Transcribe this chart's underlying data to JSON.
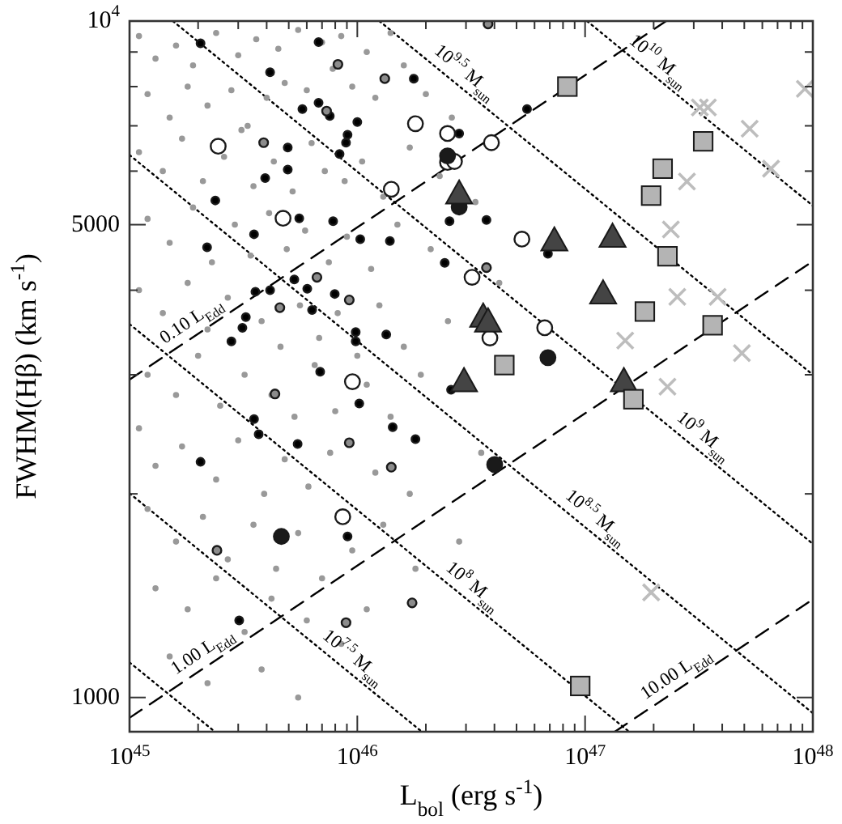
{
  "chart_data": {
    "type": "scatter",
    "xlabel": "L$_{bol}$ (erg s$^{-1}$)",
    "ylabel": "FWHM(Hβ) (km s$^{-1}$)",
    "log": "xy",
    "xlim": [
      1e+45,
      1e+48
    ],
    "ylim": [
      890,
      10000
    ],
    "xticks": [
      {
        "value": 1e+45,
        "label": "10$^{45}$"
      },
      {
        "value": 2e+45,
        "label": null
      },
      {
        "value": 3e+45,
        "label": null
      },
      {
        "value": 4e+45,
        "label": null
      },
      {
        "value": 5e+45,
        "label": null
      },
      {
        "value": 6e+45,
        "label": null
      },
      {
        "value": 7e+45,
        "label": null
      },
      {
        "value": 8e+45,
        "label": null
      },
      {
        "value": 9e+45,
        "label": null
      },
      {
        "value": 1e+46,
        "label": "10$^{46}$"
      },
      {
        "value": 2e+46,
        "label": null
      },
      {
        "value": 3e+46,
        "label": null
      },
      {
        "value": 4e+46,
        "label": null
      },
      {
        "value": 5e+46,
        "label": null
      },
      {
        "value": 6e+46,
        "label": null
      },
      {
        "value": 7e+46,
        "label": null
      },
      {
        "value": 8e+46,
        "label": null
      },
      {
        "value": 9e+46,
        "label": null
      },
      {
        "value": 1e+47,
        "label": "10$^{47}$"
      },
      {
        "value": 2e+47,
        "label": null
      },
      {
        "value": 3e+47,
        "label": null
      },
      {
        "value": 4e+47,
        "label": null
      },
      {
        "value": 5e+47,
        "label": null
      },
      {
        "value": 6e+47,
        "label": null
      },
      {
        "value": 7e+47,
        "label": null
      },
      {
        "value": 8e+47,
        "label": null
      },
      {
        "value": 9e+47,
        "label": null
      },
      {
        "value": 1e+48,
        "label": "10$^{48}$"
      }
    ],
    "yticks": [
      1000,
      {
        "value": 2000,
        "label": null
      },
      {
        "value": 3000,
        "label": null
      },
      {
        "value": 4000,
        "label": null
      },
      5000,
      {
        "value": 6000,
        "label": null
      },
      {
        "value": 7000,
        "label": null
      },
      {
        "value": 8000,
        "label": null
      },
      {
        "value": 9000,
        "label": null
      },
      {
        "value": 10000,
        "label": "10$^{4}$"
      }
    ],
    "annotations": [
      {
        "text": "10$^{9.5}$ M$_{sun}$",
        "x": 2.71e+46,
        "y": 8090
      },
      {
        "text": "10$^{10}$ M$_{sun}$",
        "x": 1.92e+47,
        "y": 8400
      },
      {
        "text": "0.10 L$_{Edd}$",
        "x": 2.02e+45,
        "y": 3459
      },
      {
        "text": "1.00 L$_{Edd}$",
        "x": 2.26e+45,
        "y": 1122
      },
      {
        "text": "10.00 L$_{Edd}$",
        "x": 2.71e+47,
        "y": 1040
      },
      {
        "text": "10$^{9}$ M$_{sun}$",
        "x": 3.03e+47,
        "y": 2344
      },
      {
        "text": "10$^{8.5}$ M$_{sun}$",
        "x": 1.02e+47,
        "y": 1778
      },
      {
        "text": "10$^{8}$ M$_{sun}$",
        "x": 2.94e+46,
        "y": 1406
      },
      {
        "text": "10$^{7.5}$ M$_{sun}$",
        "x": 8.77e+45,
        "y": 1104
      }
    ],
    "series": [
      {
        "type": "line",
        "color": "#000000",
        "line_style": "dotted",
        "x": [
          1e+45,
          2.37e+45
        ],
        "values": [
          1127,
          890
        ]
      },
      {
        "type": "line",
        "color": "#000000",
        "line_style": "dotted",
        "x": [
          1e+45,
          1.92e+46
        ],
        "values": [
          2004,
          890
        ]
      },
      {
        "type": "line",
        "color": "#000000",
        "line_style": "dotted",
        "x": [
          1e+45,
          1.56e+47
        ],
        "values": [
          3565,
          890
        ]
      },
      {
        "type": "line",
        "color": "#000000",
        "line_style": "dotted",
        "x": [
          1e+45,
          1e+48
        ],
        "values": [
          6339,
          948
        ]
      },
      {
        "type": "line",
        "color": "#000000",
        "line_style": "dotted",
        "x": [
          1.55e+45,
          1e+48
        ],
        "values": [
          10000,
          1687
        ]
      },
      {
        "type": "line",
        "color": "#000000",
        "line_style": "dotted",
        "x": [
          1.25e+46,
          1e+48
        ],
        "values": [
          10000,
          3000
        ]
      },
      {
        "type": "line",
        "color": "#000000",
        "line_style": "dotted",
        "x": [
          1.02e+47,
          1e+48
        ],
        "values": [
          10000,
          5333
        ]
      },
      {
        "type": "line",
        "color": "#000000",
        "line_style": "dashed",
        "x": [
          1e+45,
          2.27e+47
        ],
        "values": [
          2951,
          10000
        ]
      },
      {
        "type": "line",
        "color": "#000000",
        "line_style": "dashed",
        "x": [
          1e+45,
          1e+48
        ],
        "values": [
          933,
          4416
        ]
      },
      {
        "type": "line",
        "color": "#000000",
        "line_style": "dashed",
        "x": [
          1.35e+47,
          1e+48
        ],
        "values": [
          890,
          1397
        ]
      },
      {
        "type": "scatter",
        "color": "#999999",
        "marker": "circle",
        "x": [
          1.1e+45,
          1.3e+45,
          1.6e+45,
          1.9e+45,
          2.4e+45,
          3e+45,
          3.6e+45,
          4.5e+45,
          5.5e+45,
          7e+45,
          8.5e+45,
          1.1e+46,
          1.4e+46,
          1.2e+45,
          1.5e+45,
          1.8e+45,
          2.2e+45,
          2.8e+45,
          3.3e+45,
          4e+45,
          4.8e+45,
          6e+45,
          7.8e+45,
          9.5e+45,
          1.2e+46,
          1.6e+46,
          2e+46,
          1.1e+45,
          1.4e+45,
          1.7e+45,
          2.1e+45,
          2.6e+45,
          3.1e+45,
          3.5e+45,
          4.3e+45,
          5.2e+45,
          6.3e+45,
          7.2e+45,
          8.8e+45,
          1.05e+46,
          1.3e+46,
          1.7e+46,
          2.3e+46,
          1.2e+45,
          1.5e+45,
          1.9e+45,
          2.3e+45,
          2.9e+45,
          3.4e+45,
          4.1e+45,
          4.9e+45,
          5.9e+45,
          7.5e+45,
          9e+45,
          1.15e+46,
          1.5e+46,
          2.1e+46,
          3.3e+46,
          1.1e+45,
          1.4e+45,
          1.8e+45,
          2.2e+45,
          2.7e+45,
          3.8e+45,
          4.6e+45,
          5.6e+45,
          6.8e+45,
          8.2e+45,
          1e+46,
          1.25e+46,
          1.6e+46,
          2.5e+46,
          1.2e+45,
          1.6e+45,
          2e+45,
          2.5e+45,
          3.2e+45,
          4.2e+45,
          5.3e+45,
          6.5e+45,
          8e+45,
          1.1e+46,
          1.4e+46,
          1.9e+46,
          1.1e+45,
          1.3e+45,
          1.7e+45,
          2.4e+45,
          3e+45,
          3.9e+45,
          4.8e+45,
          6.1e+45,
          7.6e+45,
          1.2e+46,
          1.7e+46,
          1.2e+45,
          1.6e+45,
          2.1e+45,
          2.7e+45,
          3.5e+45,
          4.4e+45,
          5.5e+45,
          7e+45,
          9.5e+45,
          1.3e+46,
          1.8e+46,
          1.3e+45,
          1.8e+45,
          2.4e+45,
          3.2e+45,
          4.2e+45,
          6e+45,
          8.5e+45,
          1.1e+46,
          1.5e+45,
          2.2e+45,
          3.8e+45,
          5.5e+45,
          2.8e+46,
          3.5e+46,
          4.2e+46,
          2.6e+46
        ],
        "values": [
          9500,
          8800,
          9200,
          8600,
          9600,
          8900,
          9400,
          9100,
          9700,
          9300,
          9500,
          9000,
          9600,
          7800,
          7200,
          8000,
          7500,
          7900,
          7000,
          7700,
          8100,
          7900,
          8500,
          8000,
          7700,
          8600,
          7800,
          6400,
          6000,
          6700,
          5800,
          6300,
          6900,
          5700,
          6200,
          5600,
          6600,
          6000,
          5800,
          6200,
          5500,
          6500,
          5900,
          5100,
          4700,
          5300,
          4400,
          5000,
          4500,
          5200,
          4600,
          4900,
          4400,
          4800,
          4300,
          5000,
          4600,
          5400,
          4000,
          3700,
          4100,
          3500,
          3900,
          3600,
          3300,
          3800,
          3400,
          3700,
          3200,
          3800,
          3300,
          3600,
          3000,
          2800,
          3200,
          2700,
          3000,
          2800,
          2600,
          3100,
          2650,
          2900,
          2600,
          3000,
          2500,
          2200,
          2350,
          2100,
          2400,
          2000,
          2250,
          2050,
          2300,
          2150,
          2000,
          1900,
          1700,
          1850,
          1600,
          1800,
          1550,
          1750,
          1500,
          1650,
          1800,
          1550,
          1450,
          1350,
          1500,
          1250,
          1400,
          1300,
          1200,
          1350,
          1150,
          1050,
          1100,
          1000,
          1700,
          2300,
          4100,
          7200
        ]
      },
      {
        "type": "scatter",
        "color": "#000000",
        "marker": "circle",
        "x": [
          2.05e+45,
          6.76e+45,
          4.14e+45,
          1.77e+46,
          5.74e+45,
          6.76e+45,
          7.57e+45,
          1e+46,
          9.06e+45,
          8.92e+45,
          8.36e+45,
          4.95e+45,
          3.94e+45,
          4.95e+45,
          2.38e+45,
          5.56e+45,
          7.83e+45,
          3.52e+45,
          1.03e+46,
          1.39e+46,
          2.19e+45,
          2.54e+46,
          2.42e+46,
          2.8e+46,
          5.29e+45,
          6.03e+45,
          7.96e+45,
          3.57e+45,
          4.14e+45,
          3.24e+45,
          3.13e+45,
          2.8e+45,
          6.33e+45,
          9.84e+45,
          9.84e+45,
          1.34e+46,
          6.87e+45,
          5.56e+46,
          3.69e+46,
          6.87e+46,
          2.58e+46,
          1.02e+46,
          3.52e+45,
          3.69e+45,
          5.47e+45,
          1.43e+46,
          1.8e+46,
          2.05e+45,
          9.06e+45,
          3.03e+45
        ],
        "values": [
          9270,
          9310,
          8400,
          8220,
          7410,
          7570,
          7240,
          7090,
          6790,
          6610,
          6360,
          6500,
          5860,
          6030,
          5430,
          5110,
          5060,
          4840,
          4760,
          4730,
          4630,
          5060,
          4390,
          6820,
          4150,
          4020,
          3950,
          3980,
          4000,
          3650,
          3520,
          3360,
          3740,
          3470,
          3360,
          3440,
          3030,
          7410,
          5080,
          4530,
          2850,
          2720,
          2580,
          2450,
          2370,
          2510,
          2410,
          2230,
          1730,
          1300
        ]
      },
      {
        "type": "scatter",
        "color": "#8c8c8c",
        "marker": "circle",
        "x": [
          8.22e+45,
          1.32e+46,
          7.33e+45,
          3.88e+45,
          6.65e+45,
          9.22e+45,
          4.57e+45,
          3.75e+46,
          3.69e+46,
          4.35e+45,
          9.22e+45,
          1.41e+46,
          2.42e+45,
          1.74e+46,
          8.92e+45
        ],
        "values": [
          8630,
          8220,
          7360,
          6610,
          4180,
          3870,
          3770,
          9900,
          4320,
          2810,
          2380,
          2190,
          1650,
          1380,
          1290
        ]
      },
      {
        "type": "scatter",
        "color": "#ffffff",
        "marker": "circle",
        "x": [
          2.45e+45,
          1.8e+46,
          2.49e+46,
          2.49e+46,
          2.67e+46,
          1.41e+46,
          4.72e+45,
          3.19e+46,
          3.88e+46,
          5.28e+46,
          3.82e+46,
          6.65e+46,
          9.52e+45,
          8.63e+45
        ],
        "values": [
          6530,
          7050,
          6820,
          6180,
          6200,
          5640,
          5110,
          4180,
          6610,
          4760,
          3400,
          3520,
          2930,
          1850
        ]
      },
      {
        "type": "scatter",
        "color": "#1a1a1a",
        "marker": "circle",
        "x": [
          2.49e+46,
          2.8e+46,
          6.87e+46,
          4.01e+46,
          4.64e+45
        ],
        "values": [
          6320,
          5310,
          3180,
          2210,
          1730
        ]
      },
      {
        "type": "scatter",
        "color": "#444444",
        "marker": "triangle",
        "x": [
          2.8e+46,
          7.33e+46,
          1.32e+47,
          1.2e+47,
          3.57e+46,
          3.75e+46,
          2.94e+46,
          1.48e+47
        ],
        "values": [
          5550,
          4730,
          4790,
          3950,
          3650,
          3590,
          2930,
          2930
        ]
      },
      {
        "type": "scatter",
        "color": "#b4b4b4",
        "marker": "square",
        "x": [
          8.36e+46,
          3.3e+47,
          2.19e+47,
          1.95e+47,
          2.3e+47,
          1.83e+47,
          3.63e+47,
          4.42e+46,
          1.63e+47,
          9.52e+46
        ],
        "values": [
          8000,
          6640,
          6050,
          5520,
          4490,
          3720,
          3550,
          3100,
          2760,
          1040
        ]
      },
      {
        "type": "scatter",
        "color": "#bdbdbd",
        "marker": "cross",
        "x": [
          3.19e+47,
          3.46e+47,
          5.28e+47,
          6.55e+47,
          2.8e+47,
          2.38e+47,
          2.54e+47,
          3.82e+47,
          1.5e+47,
          4.88e+47,
          2.3e+47,
          1.95e+47,
          9.22e+47
        ],
        "values": [
          7450,
          7450,
          6930,
          6050,
          5790,
          4920,
          3910,
          3910,
          3370,
          3230,
          2880,
          1430,
          7940
        ]
      }
    ]
  }
}
